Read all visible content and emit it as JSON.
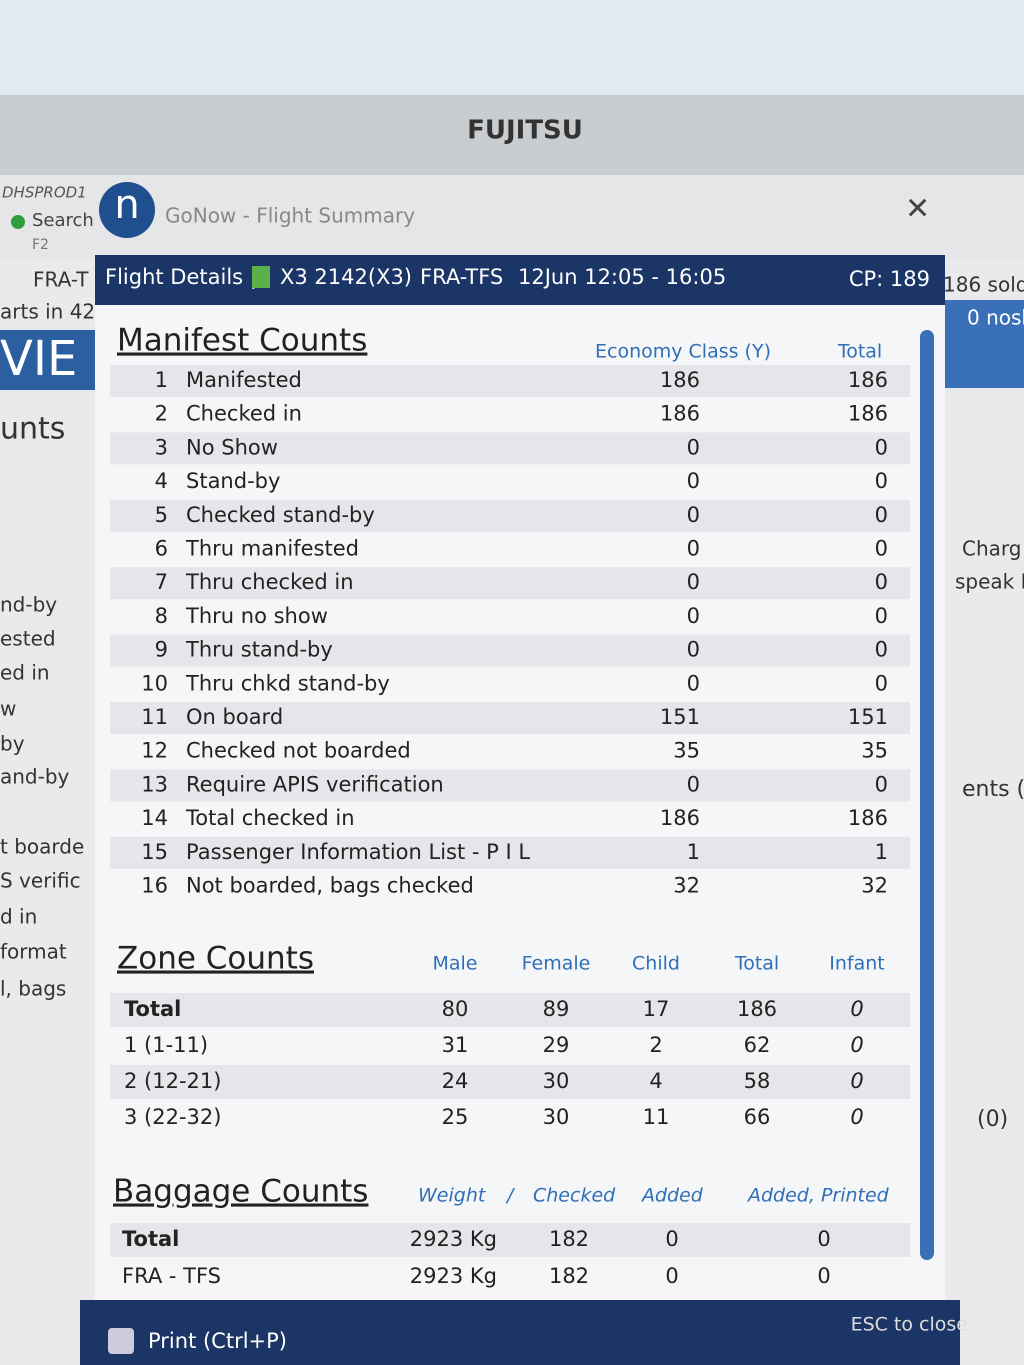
{
  "monitor": {
    "brand": "FUJITSU"
  },
  "window": {
    "host": "DHSPROD1",
    "search": "Search",
    "search_key": "F2",
    "title": "GoNow - Flight Summary"
  },
  "background_texts": [
    "FRA-T",
    "arts in 42",
    "VIE",
    "unts",
    "nd-by",
    "ested",
    "ed in",
    "w",
    "by",
    "and-by",
    "t boarde",
    "S verific",
    "d in",
    "format",
    "l, bags",
    "186 sold",
    "0 nosh",
    "Charg",
    "speak E",
    "ents (",
    "(0)"
  ],
  "header": {
    "section": "Flight Details |",
    "flight": "X3 2142(X3)",
    "route": "FRA-TFS",
    "time": "12Jun 12:05 - 16:05",
    "cp": "CP: 189"
  },
  "manifest": {
    "title": "Manifest Counts",
    "columns": [
      "Economy Class (Y)",
      "Total"
    ],
    "rows": [
      {
        "no": 1,
        "label": "Manifested",
        "values": [
          186,
          186
        ]
      },
      {
        "no": 2,
        "label": "Checked in",
        "values": [
          186,
          186
        ]
      },
      {
        "no": 3,
        "label": "No Show",
        "values": [
          0,
          0
        ]
      },
      {
        "no": 4,
        "label": "Stand-by",
        "values": [
          0,
          0
        ]
      },
      {
        "no": 5,
        "label": "Checked stand-by",
        "values": [
          0,
          0
        ]
      },
      {
        "no": 6,
        "label": "Thru manifested",
        "values": [
          0,
          0
        ]
      },
      {
        "no": 7,
        "label": "Thru checked in",
        "values": [
          0,
          0
        ]
      },
      {
        "no": 8,
        "label": "Thru no show",
        "values": [
          0,
          0
        ]
      },
      {
        "no": 9,
        "label": "Thru stand-by",
        "values": [
          0,
          0
        ]
      },
      {
        "no": 10,
        "label": "Thru chkd stand-by",
        "values": [
          0,
          0
        ]
      },
      {
        "no": 11,
        "label": "On board",
        "values": [
          151,
          151
        ]
      },
      {
        "no": 12,
        "label": "Checked not boarded",
        "values": [
          35,
          35
        ]
      },
      {
        "no": 13,
        "label": "Require APIS verification",
        "values": [
          0,
          0
        ]
      },
      {
        "no": 14,
        "label": "Total checked in",
        "values": [
          186,
          186
        ]
      },
      {
        "no": 15,
        "label": "Passenger Information List - P I L",
        "values": [
          1,
          1
        ]
      },
      {
        "no": 16,
        "label": "Not boarded, bags checked",
        "values": [
          32,
          32
        ]
      }
    ]
  },
  "zones": {
    "title": "Zone Counts",
    "columns": [
      "Male",
      "Female",
      "Child",
      "Total",
      "Infant"
    ],
    "rows": [
      {
        "label": "Total",
        "values": [
          80,
          89,
          17,
          186,
          0
        ]
      },
      {
        "label": "1 (1-11)",
        "values": [
          31,
          29,
          2,
          62,
          0
        ]
      },
      {
        "label": "2 (12-21)",
        "values": [
          24,
          30,
          4,
          58,
          0
        ]
      },
      {
        "label": "3 (22-32)",
        "values": [
          25,
          30,
          11,
          66,
          0
        ]
      }
    ]
  },
  "baggage": {
    "title": "Baggage Counts",
    "columns": [
      "Weight",
      "/",
      "Checked",
      "Added",
      "Added, Printed"
    ],
    "rows": [
      {
        "label": "Total",
        "values": [
          "2923 Kg",
          182,
          0,
          0
        ]
      },
      {
        "label": "FRA - TFS",
        "values": [
          "2923 Kg",
          182,
          0,
          0
        ]
      }
    ]
  },
  "footer": {
    "print": "Print (Ctrl+P)",
    "close": "ESC to close"
  }
}
